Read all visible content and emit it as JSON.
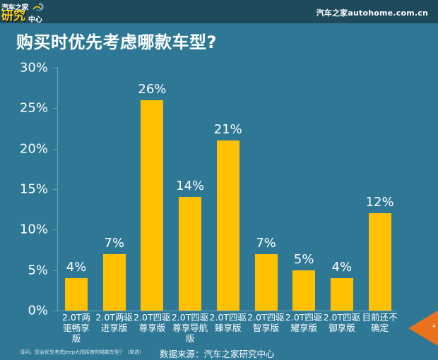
{
  "header": {
    "logo_line1": "汽车之家",
    "logo_line2": "研究",
    "logo_line3": "中心",
    "brand_right": "汽车之家autohome.com.cn"
  },
  "title": "购买时优先考虑哪款车型?",
  "footer": {
    "question_note": "请问，您会优先考虑Jeep大指挥官的哪款车型？（单选）",
    "source": "数据来源：汽车之家研究中心",
    "page_number": "4"
  },
  "colors": {
    "background": "#2e7896",
    "topbar": "#1f4a5e",
    "bar": "#ffc000",
    "page_marker": "#e8731c"
  },
  "chart_data": {
    "type": "bar",
    "title": "购买时优先考虑哪款车型?",
    "xlabel": "",
    "ylabel": "",
    "ylim": [
      0,
      30
    ],
    "yticks": [
      "0%",
      "5%",
      "10%",
      "15%",
      "20%",
      "25%",
      "30%"
    ],
    "grid": false,
    "legend": null,
    "categories": [
      "2.0T两驱畅享版",
      "2.0T两驱进享版",
      "2.0T四驱尊享版",
      "2.0T四驱尊享导航版",
      "2.0T四驱臻享版",
      "2.0T四驱智享版",
      "2.0T四驱耀享版",
      "2.0T四驱御享版",
      "目前还不确定"
    ],
    "values": [
      4,
      7,
      26,
      14,
      21,
      7,
      5,
      4,
      12
    ],
    "value_labels": [
      "4%",
      "7%",
      "26%",
      "14%",
      "21%",
      "7%",
      "5%",
      "4%",
      "12%"
    ],
    "category_lines": [
      [
        "2.0T两",
        "驱畅享",
        "版"
      ],
      [
        "2.0T两驱",
        "进享版"
      ],
      [
        "2.0T四驱",
        "尊享版"
      ],
      [
        "2.0T四驱",
        "尊享导航",
        "版"
      ],
      [
        "2.0T四驱",
        "臻享版"
      ],
      [
        "2.0T四驱",
        "智享版"
      ],
      [
        "2.0T四驱",
        "耀享版"
      ],
      [
        "2.0T四驱",
        "御享版"
      ],
      [
        "目前还不",
        "确定"
      ]
    ]
  }
}
